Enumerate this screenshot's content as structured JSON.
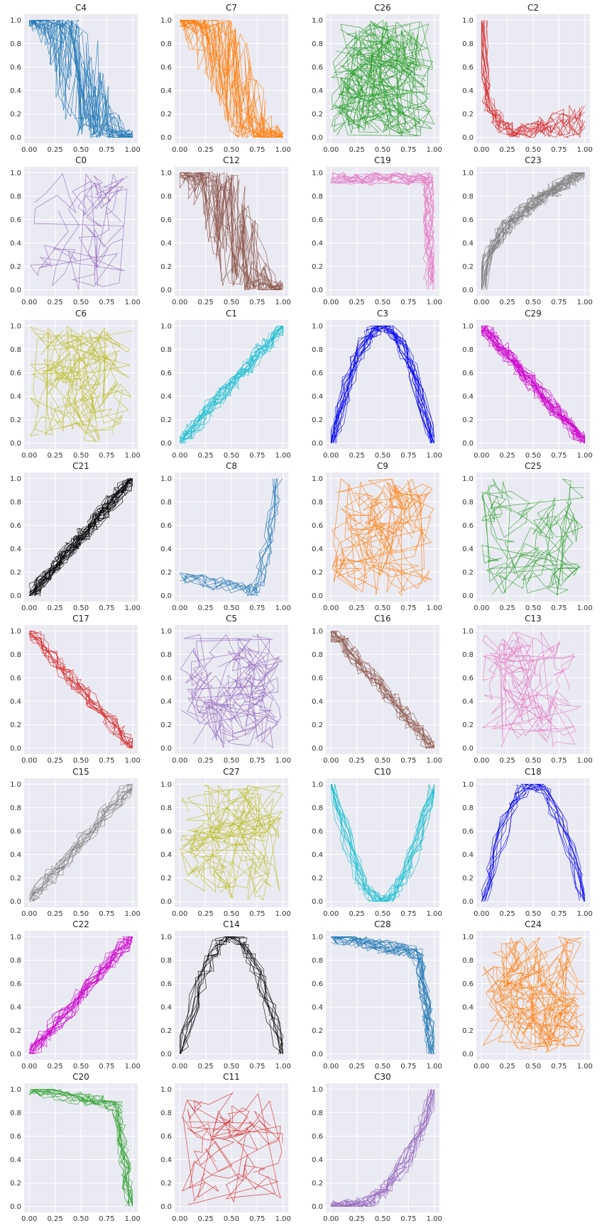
{
  "chart_data": {
    "type": "line",
    "layout": "small-multiples",
    "grid_columns": 4,
    "xlim": [
      -0.05,
      1.05
    ],
    "ylim": [
      -0.05,
      1.05
    ],
    "xticks": [
      "0.00",
      "0.25",
      "0.50",
      "0.75",
      "1.00"
    ],
    "yticks": [
      "0.0",
      "0.2",
      "0.4",
      "0.6",
      "0.8",
      "1.0"
    ],
    "grid": true,
    "background": "#EAEAF2",
    "panels": [
      {
        "title": "C4",
        "color": "#1f77b4",
        "lines": 18,
        "pattern": "sigmoid-down"
      },
      {
        "title": "C7",
        "color": "#ff7f0e",
        "lines": 22,
        "pattern": "sigmoid-down"
      },
      {
        "title": "C26",
        "color": "#2ca02c",
        "lines": 24,
        "pattern": "random"
      },
      {
        "title": "C2",
        "color": "#d62728",
        "lines": 12,
        "pattern": "l-shape"
      },
      {
        "title": "C0",
        "color": "#9467bd",
        "lines": 5,
        "pattern": "random"
      },
      {
        "title": "C12",
        "color": "#8c564b",
        "lines": 18,
        "pattern": "sigmoid-down"
      },
      {
        "title": "C19",
        "color": "#e377c2",
        "lines": 14,
        "pattern": "corner-right"
      },
      {
        "title": "C23",
        "color": "#7f7f7f",
        "lines": 20,
        "pattern": "rising-concave"
      },
      {
        "title": "C6",
        "color": "#bcbd22",
        "lines": 14,
        "pattern": "random"
      },
      {
        "title": "C1",
        "color": "#17becf",
        "lines": 16,
        "pattern": "rising-diagonal"
      },
      {
        "title": "C3",
        "color": "#0000ee",
        "lines": 16,
        "pattern": "arch"
      },
      {
        "title": "C29",
        "color": "#cc00cc",
        "lines": 22,
        "pattern": "falling-diagonal"
      },
      {
        "title": "C21",
        "color": "#000000",
        "lines": 22,
        "pattern": "rising-diagonal"
      },
      {
        "title": "C8",
        "color": "#1f77b4",
        "lines": 8,
        "pattern": "u-right"
      },
      {
        "title": "C9",
        "color": "#ff7f0e",
        "lines": 14,
        "pattern": "random"
      },
      {
        "title": "C25",
        "color": "#2ca02c",
        "lines": 10,
        "pattern": "random"
      },
      {
        "title": "C17",
        "color": "#d62728",
        "lines": 12,
        "pattern": "falling-diagonal"
      },
      {
        "title": "C5",
        "color": "#9467bd",
        "lines": 12,
        "pattern": "random"
      },
      {
        "title": "C16",
        "color": "#8c564b",
        "lines": 14,
        "pattern": "falling-diagonal"
      },
      {
        "title": "C13",
        "color": "#e377c2",
        "lines": 10,
        "pattern": "random"
      },
      {
        "title": "C15",
        "color": "#7f7f7f",
        "lines": 12,
        "pattern": "rising-diagonal"
      },
      {
        "title": "C27",
        "color": "#bcbd22",
        "lines": 14,
        "pattern": "random"
      },
      {
        "title": "C10",
        "color": "#17becf",
        "lines": 14,
        "pattern": "u-shape"
      },
      {
        "title": "C18",
        "color": "#0000ee",
        "lines": 10,
        "pattern": "arch"
      },
      {
        "title": "C22",
        "color": "#cc00cc",
        "lines": 18,
        "pattern": "rising-diagonal"
      },
      {
        "title": "C14",
        "color": "#000000",
        "lines": 9,
        "pattern": "arch"
      },
      {
        "title": "C28",
        "color": "#1f77b4",
        "lines": 16,
        "pattern": "corner-down"
      },
      {
        "title": "C24",
        "color": "#ff7f0e",
        "lines": 16,
        "pattern": "random"
      },
      {
        "title": "C20",
        "color": "#2ca02c",
        "lines": 12,
        "pattern": "corner-down"
      },
      {
        "title": "C11",
        "color": "#d62728",
        "lines": 6,
        "pattern": "random"
      },
      {
        "title": "C30",
        "color": "#9467bd",
        "lines": 14,
        "pattern": "rising-convex"
      }
    ]
  }
}
